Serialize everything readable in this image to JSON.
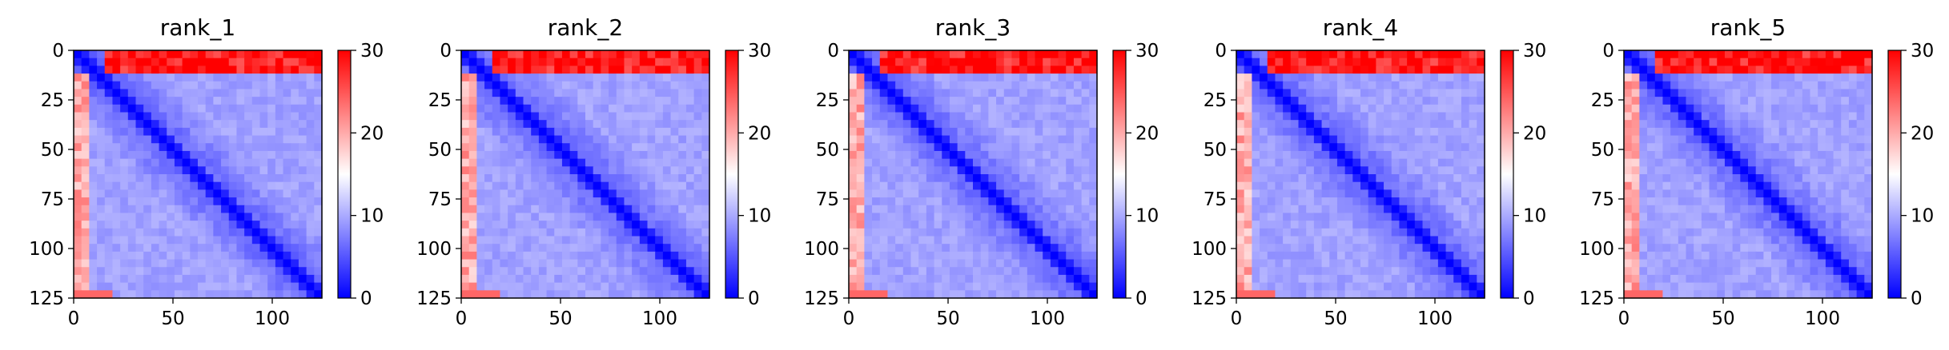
{
  "chart_data": [
    {
      "type": "heatmap",
      "title": "rank_1",
      "x_ticks": [
        "0",
        "50",
        "100"
      ],
      "y_ticks": [
        "0",
        "25",
        "50",
        "75",
        "100",
        "125"
      ],
      "xlim": [
        0,
        125
      ],
      "ylim": [
        125,
        0
      ],
      "colorbar": {
        "ticks": [
          "0",
          "10",
          "20",
          "30"
        ],
        "range": [
          0,
          30
        ],
        "colormap": "bwr"
      },
      "grid": false
    },
    {
      "type": "heatmap",
      "title": "rank_2",
      "x_ticks": [
        "0",
        "50",
        "100"
      ],
      "y_ticks": [
        "0",
        "25",
        "50",
        "75",
        "100",
        "125"
      ],
      "xlim": [
        0,
        125
      ],
      "ylim": [
        125,
        0
      ],
      "colorbar": {
        "ticks": [
          "0",
          "10",
          "20",
          "30"
        ],
        "range": [
          0,
          30
        ],
        "colormap": "bwr"
      },
      "grid": false
    },
    {
      "type": "heatmap",
      "title": "rank_3",
      "x_ticks": [
        "0",
        "50",
        "100"
      ],
      "y_ticks": [
        "0",
        "25",
        "50",
        "75",
        "100",
        "125"
      ],
      "xlim": [
        0,
        125
      ],
      "ylim": [
        125,
        0
      ],
      "colorbar": {
        "ticks": [
          "0",
          "10",
          "20",
          "30"
        ],
        "range": [
          0,
          30
        ],
        "colormap": "bwr"
      },
      "grid": false
    },
    {
      "type": "heatmap",
      "title": "rank_4",
      "x_ticks": [
        "0",
        "50",
        "100"
      ],
      "y_ticks": [
        "0",
        "25",
        "50",
        "75",
        "100",
        "125"
      ],
      "xlim": [
        0,
        125
      ],
      "ylim": [
        125,
        0
      ],
      "colorbar": {
        "ticks": [
          "0",
          "10",
          "20",
          "30"
        ],
        "range": [
          0,
          30
        ],
        "colormap": "bwr"
      },
      "grid": false
    },
    {
      "type": "heatmap",
      "title": "rank_5",
      "x_ticks": [
        "0",
        "50",
        "100"
      ],
      "y_ticks": [
        "0",
        "25",
        "50",
        "75",
        "100",
        "125"
      ],
      "xlim": [
        0,
        125
      ],
      "ylim": [
        125,
        0
      ],
      "colorbar": {
        "ticks": [
          "0",
          "10",
          "20",
          "30"
        ],
        "range": [
          0,
          30
        ],
        "colormap": "bwr"
      },
      "grid": false
    }
  ],
  "colors": {
    "low": "#0000ff",
    "mid": "#ffffff",
    "high": "#ff0000",
    "axis": "#000000"
  }
}
